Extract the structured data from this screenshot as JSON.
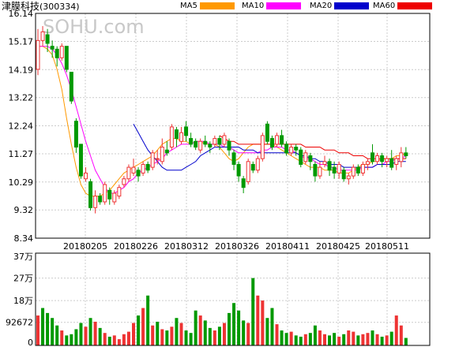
{
  "stock": {
    "name": "津膜科技",
    "code": "(300334)"
  },
  "watermark": "SOHU.com",
  "legend": [
    {
      "label": "MA5",
      "color": "#ff9900"
    },
    {
      "label": "MA10",
      "color": "#ff00ff"
    },
    {
      "label": "MA20",
      "color": "#0000cc"
    },
    {
      "label": "MA60",
      "color": "#ee0000"
    }
  ],
  "colors": {
    "up": "#ee3333",
    "down": "#009900",
    "grid": "#cccccc",
    "border": "#000000"
  },
  "chart_data": [
    {
      "type": "candlestick",
      "title": "",
      "ylim": [
        8.34,
        16.14
      ],
      "y_ticks": [
        "16.14",
        "15.17",
        "14.19",
        "13.22",
        "12.24",
        "11.27",
        "10.29",
        "9.32",
        "8.34"
      ],
      "x_ticks": [
        "20180205",
        "20180226",
        "20180312",
        "20180326",
        "20180411",
        "20180425",
        "20180511"
      ],
      "candles": [
        [
          14.2,
          15.2,
          15.6,
          14.0
        ],
        [
          15.2,
          15.5,
          15.7,
          15.0
        ],
        [
          15.4,
          15.1,
          15.6,
          14.8
        ],
        [
          15.0,
          14.9,
          15.2,
          14.6
        ],
        [
          14.9,
          14.6,
          15.0,
          14.3
        ],
        [
          14.6,
          15.0,
          15.1,
          14.5
        ],
        [
          15.0,
          14.2,
          15.0,
          14.1
        ],
        [
          14.1,
          13.1,
          14.1,
          13.0
        ],
        [
          12.4,
          11.5,
          12.5,
          11.3
        ],
        [
          11.6,
          10.5,
          11.6,
          10.4
        ],
        [
          10.4,
          10.6,
          10.8,
          10.3
        ],
        [
          10.3,
          9.4,
          10.4,
          9.3
        ],
        [
          9.4,
          9.8,
          10.0,
          9.2
        ],
        [
          9.8,
          9.6,
          9.9,
          9.5
        ],
        [
          9.6,
          10.2,
          10.3,
          9.5
        ],
        [
          10.0,
          9.7,
          10.1,
          9.5
        ],
        [
          9.6,
          9.9,
          10.0,
          9.5
        ],
        [
          9.8,
          10.1,
          10.2,
          9.7
        ],
        [
          10.2,
          10.4,
          10.5,
          10.1
        ],
        [
          10.4,
          10.8,
          10.9,
          10.3
        ],
        [
          10.6,
          10.8,
          11.1,
          10.5
        ],
        [
          10.7,
          10.5,
          10.8,
          10.3
        ],
        [
          10.6,
          10.9,
          11.0,
          10.5
        ],
        [
          10.9,
          10.7,
          11.0,
          10.6
        ],
        [
          10.8,
          11.3,
          11.4,
          10.7
        ],
        [
          11.1,
          11.1,
          11.4,
          10.9
        ],
        [
          11.0,
          11.5,
          11.8,
          10.9
        ],
        [
          11.4,
          11.3,
          11.7,
          11.2
        ],
        [
          11.5,
          12.2,
          12.3,
          11.4
        ],
        [
          12.1,
          11.8,
          12.2,
          11.5
        ],
        [
          11.7,
          12.0,
          12.2,
          11.6
        ],
        [
          12.2,
          11.9,
          12.4,
          11.7
        ],
        [
          11.8,
          11.6,
          12.0,
          11.5
        ],
        [
          11.7,
          11.5,
          11.8,
          11.4
        ],
        [
          11.4,
          11.7,
          11.8,
          11.3
        ],
        [
          11.7,
          11.6,
          11.9,
          11.5
        ],
        [
          11.6,
          11.5,
          11.7,
          11.3
        ],
        [
          11.6,
          11.8,
          11.9,
          11.5
        ],
        [
          11.8,
          11.6,
          11.9,
          11.4
        ],
        [
          11.6,
          11.9,
          12.0,
          11.5
        ],
        [
          11.7,
          11.4,
          11.8,
          11.2
        ],
        [
          11.3,
          10.9,
          11.4,
          10.7
        ],
        [
          10.9,
          10.5,
          11.0,
          10.3
        ],
        [
          10.4,
          10.1,
          10.5,
          9.9
        ],
        [
          10.3,
          11.0,
          11.1,
          10.2
        ],
        [
          10.9,
          10.7,
          11.0,
          10.6
        ],
        [
          10.7,
          11.1,
          11.2,
          10.6
        ],
        [
          11.1,
          11.9,
          12.0,
          11.0
        ],
        [
          12.3,
          11.7,
          12.4,
          11.6
        ],
        [
          11.8,
          11.5,
          11.9,
          11.4
        ],
        [
          11.6,
          11.9,
          12.0,
          11.5
        ],
        [
          11.9,
          11.6,
          12.1,
          11.5
        ],
        [
          11.6,
          11.3,
          11.7,
          11.2
        ],
        [
          11.3,
          11.5,
          11.6,
          11.2
        ],
        [
          11.5,
          11.4,
          11.6,
          11.2
        ],
        [
          11.4,
          10.9,
          11.5,
          10.8
        ],
        [
          11.0,
          11.3,
          11.4,
          10.9
        ],
        [
          11.2,
          11.0,
          11.3,
          10.7
        ],
        [
          10.9,
          10.5,
          11.0,
          10.3
        ],
        [
          10.5,
          10.8,
          11.0,
          10.4
        ],
        [
          10.9,
          11.0,
          11.2,
          10.8
        ],
        [
          11.0,
          10.7,
          11.1,
          10.5
        ],
        [
          10.8,
          10.6,
          11.0,
          10.4
        ],
        [
          10.6,
          10.9,
          11.0,
          10.4
        ],
        [
          10.7,
          10.4,
          10.8,
          10.3
        ],
        [
          10.4,
          10.5,
          10.6,
          10.2
        ],
        [
          10.5,
          10.8,
          10.9,
          10.4
        ],
        [
          10.8,
          10.6,
          10.9,
          10.5
        ],
        [
          10.6,
          10.9,
          11.0,
          10.5
        ],
        [
          10.9,
          11.0,
          11.1,
          10.7
        ],
        [
          11.3,
          11.0,
          11.6,
          10.9
        ],
        [
          11.0,
          11.2,
          11.3,
          10.9
        ],
        [
          11.2,
          11.0,
          11.3,
          10.8
        ],
        [
          11.0,
          11.1,
          11.2,
          10.8
        ],
        [
          11.1,
          10.8,
          11.4,
          10.7
        ],
        [
          10.9,
          11.1,
          11.2,
          10.7
        ],
        [
          11.0,
          11.3,
          11.5,
          10.8
        ],
        [
          11.3,
          11.2,
          11.5,
          11.1
        ]
      ],
      "series": [
        {
          "name": "MA5",
          "color": "#ff9900",
          "values": [
            15.0,
            15.0,
            14.9,
            14.7,
            14.2,
            13.5,
            12.5,
            11.6,
            10.8,
            10.2,
            9.9,
            9.8,
            9.8,
            9.8,
            9.9,
            10.0,
            10.2,
            10.4,
            10.6,
            10.7,
            10.8,
            10.9,
            11.0,
            11.1,
            11.2,
            11.4,
            11.6,
            11.7,
            11.8,
            11.8,
            11.7,
            11.7,
            11.6,
            11.7,
            11.7,
            11.6,
            11.6,
            11.6,
            11.5,
            11.3,
            11.1,
            11.0,
            11.1,
            11.3,
            11.5,
            11.6,
            11.6,
            11.6,
            11.6,
            11.6,
            11.5,
            11.4,
            11.3,
            11.2,
            11.1,
            11.0,
            10.9,
            10.8,
            10.8,
            10.8,
            10.7,
            10.7,
            10.7,
            10.6,
            10.6,
            10.6,
            10.7,
            10.8,
            10.9,
            10.9,
            11.0,
            11.0,
            11.1,
            11.1,
            11.1,
            11.2,
            11.2,
            11.3
          ]
        },
        {
          "name": "MA10",
          "color": "#ff00ff",
          "values": [
            15.0,
            15.0,
            15.0,
            14.9,
            14.7,
            14.4,
            14.0,
            13.5,
            12.9,
            12.3,
            11.7,
            11.2,
            10.7,
            10.4,
            10.1,
            9.9,
            9.9,
            10.0,
            10.1,
            10.3,
            10.4,
            10.6,
            10.7,
            10.8,
            10.9,
            11.0,
            11.1,
            11.3,
            11.4,
            11.5,
            11.6,
            11.6,
            11.6,
            11.7,
            11.7,
            11.7,
            11.6,
            11.6,
            11.6,
            11.5,
            11.5,
            11.4,
            11.3,
            11.3,
            11.3,
            11.3,
            11.3,
            11.4,
            11.4,
            11.5,
            11.5,
            11.5,
            11.4,
            11.4,
            11.3,
            11.2,
            11.1,
            11.1,
            11.0,
            10.9,
            10.9,
            10.8,
            10.8,
            10.7,
            10.7,
            10.7,
            10.7,
            10.7,
            10.8,
            10.8,
            10.8,
            10.9,
            10.9,
            11.0,
            11.0,
            11.1,
            11.1,
            11.2
          ]
        },
        {
          "name": "MA20",
          "color": "#0000cc",
          "values": [
            null,
            null,
            null,
            null,
            null,
            null,
            null,
            null,
            null,
            null,
            null,
            null,
            null,
            null,
            null,
            null,
            null,
            null,
            null,
            null,
            12.3,
            12.0,
            11.7,
            11.4,
            11.2,
            11.0,
            10.8,
            10.7,
            10.7,
            10.7,
            10.7,
            10.8,
            10.9,
            11.0,
            11.2,
            11.3,
            11.4,
            11.5,
            11.5,
            11.5,
            11.5,
            11.5,
            11.5,
            11.4,
            11.4,
            11.4,
            11.3,
            11.3,
            11.3,
            11.3,
            11.3,
            11.3,
            11.3,
            11.3,
            11.3,
            11.2,
            11.2,
            11.1,
            11.1,
            11.0,
            11.0,
            10.9,
            10.9,
            10.9,
            10.8,
            10.8,
            10.8,
            10.8,
            10.8,
            10.8,
            10.8,
            10.9,
            10.9,
            10.9,
            10.9,
            11.0,
            11.0,
            11.0
          ]
        },
        {
          "name": "MA60",
          "color": "#ee0000",
          "values": [
            null,
            null,
            null,
            null,
            null,
            null,
            null,
            null,
            null,
            null,
            null,
            null,
            null,
            null,
            null,
            null,
            null,
            null,
            null,
            null,
            null,
            null,
            null,
            null,
            null,
            null,
            null,
            null,
            null,
            null,
            null,
            null,
            null,
            null,
            null,
            null,
            null,
            null,
            11.9,
            11.8,
            11.7,
            11.7,
            11.6,
            11.6,
            11.6,
            11.6,
            11.6,
            11.6,
            11.6,
            11.6,
            11.6,
            11.6,
            11.6,
            11.6,
            11.6,
            11.6,
            11.5,
            11.5,
            11.5,
            11.5,
            11.4,
            11.4,
            11.4,
            11.3,
            11.3,
            11.3,
            11.2,
            11.2,
            11.2,
            11.1,
            11.1,
            11.1,
            11.1,
            11.1,
            11.1,
            11.1,
            11.1,
            11.1
          ]
        }
      ]
    },
    {
      "type": "bar",
      "title": "",
      "ylim": [
        0,
        370000
      ],
      "y_ticks": [
        {
          "label": "37万",
          "value": 370000
        },
        {
          "label": "27万",
          "value": 270000
        },
        {
          "label": "18万",
          "value": 180000
        },
        {
          "label": "92672",
          "value": 92672
        },
        {
          "label": "0",
          "value": 0
        }
      ],
      "values": [
        120000,
        150000,
        130000,
        110000,
        80000,
        60000,
        40000,
        45000,
        65000,
        90000,
        75000,
        110000,
        95000,
        70000,
        50000,
        35000,
        40000,
        25000,
        45000,
        55000,
        90000,
        120000,
        150000,
        200000,
        80000,
        95000,
        65000,
        60000,
        75000,
        110000,
        90000,
        60000,
        50000,
        140000,
        120000,
        100000,
        70000,
        60000,
        75000,
        90000,
        130000,
        170000,
        140000,
        100000,
        90000,
        270000,
        200000,
        180000,
        110000,
        150000,
        85000,
        60000,
        50000,
        55000,
        40000,
        35000,
        45000,
        50000,
        80000,
        60000,
        45000,
        40000,
        50000,
        35000,
        45000,
        60000,
        55000,
        40000,
        45000,
        50000,
        60000,
        45000,
        35000,
        40000,
        55000,
        120000,
        80000,
        30000
      ],
      "colors": [
        "up",
        "down",
        "down",
        "down",
        "down",
        "up",
        "down",
        "down",
        "down",
        "down",
        "up",
        "down",
        "up",
        "down",
        "up",
        "down",
        "up",
        "up",
        "up",
        "up",
        "up",
        "down",
        "up",
        "down",
        "up",
        "down",
        "up",
        "down",
        "up",
        "down",
        "up",
        "down",
        "down",
        "down",
        "up",
        "down",
        "down",
        "up",
        "down",
        "up",
        "down",
        "down",
        "down",
        "down",
        "up",
        "down",
        "up",
        "up",
        "down",
        "down",
        "up",
        "down",
        "down",
        "up",
        "down",
        "down",
        "up",
        "down",
        "down",
        "up",
        "up",
        "down",
        "down",
        "up",
        "down",
        "up",
        "up",
        "down",
        "up",
        "up",
        "down",
        "up",
        "down",
        "up",
        "down",
        "up",
        "up",
        "down"
      ]
    }
  ]
}
